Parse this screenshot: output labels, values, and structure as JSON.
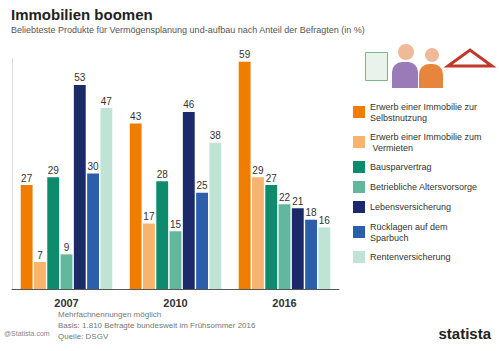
{
  "chart_data": {
    "type": "bar",
    "title": "Immobilien boomen",
    "subtitle": "Beliebteste Produkte für Vermögensplanung und-aufbau nach Anteil der Befragten (in %)",
    "categories": [
      "2007",
      "2010",
      "2016"
    ],
    "series": [
      {
        "name": "Erwerb einer Immobilie zur Selbstnutzung",
        "color": "#f07d00",
        "values": [
          27,
          43,
          59
        ]
      },
      {
        "name": "Erwerb einer Immobilie zum Vermieten",
        "color": "#f6b46e",
        "values": [
          7,
          17,
          29
        ]
      },
      {
        "name": "Bausparvertrag",
        "color": "#0e8a6c",
        "values": [
          29,
          28,
          27
        ]
      },
      {
        "name": "Betriebliche Altersvorsorge",
        "color": "#62b89c",
        "values": [
          9,
          15,
          22
        ]
      },
      {
        "name": "Lebensversicherung",
        "color": "#1c2a6b",
        "values": [
          53,
          46,
          21
        ]
      },
      {
        "name": "Rücklagen auf dem Sparbuch",
        "color": "#2c5fa9",
        "values": [
          30,
          25,
          18
        ]
      },
      {
        "name": "Rentenversicherung",
        "color": "#bfe3d5",
        "values": [
          47,
          38,
          16
        ]
      }
    ],
    "ylim": [
      0,
      60
    ],
    "grid": false,
    "legend": "right",
    "data_labels": true,
    "tick_labels": "x",
    "footnotes": [
      "Mehrfachnennungen möglich",
      "Basis: 1.810 Befragte bundesweit im Frühsommer 2016",
      "Quelle: DSGV"
    ],
    "credit": "@Statista.com",
    "brand": "statista"
  }
}
